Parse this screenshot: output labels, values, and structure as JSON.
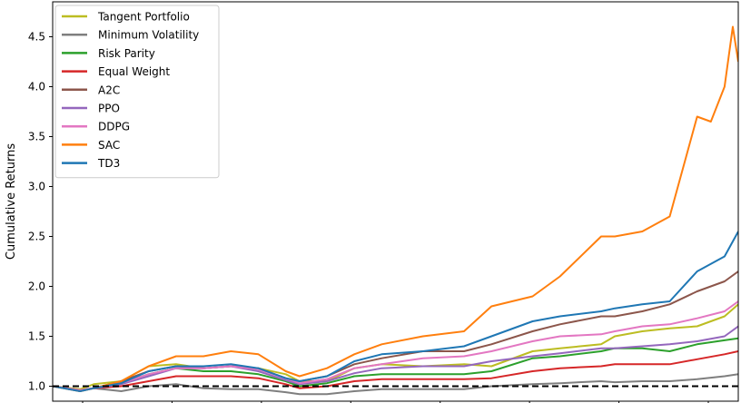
{
  "chart_data": {
    "type": "line",
    "title": "",
    "xlabel": "",
    "ylabel": "Cumulative Returns",
    "ylim": [
      0.85,
      4.85
    ],
    "yticks": [
      1.0,
      1.5,
      2.0,
      2.5,
      3.0,
      3.5,
      4.0,
      4.5
    ],
    "ytick_labels": [
      "1.0",
      "1.5",
      "2.0",
      "2.5",
      "3.0",
      "3.5",
      "4.0",
      "4.5"
    ],
    "xlim": [
      0,
      250
    ],
    "x_tick_count": 8,
    "grid": false,
    "legend_position": "upper left",
    "reference_line": {
      "y": 1.0,
      "style": "dashed",
      "color": "#000000"
    },
    "series": [
      {
        "name": "Tangent Portfolio",
        "color": "#bcbd22",
        "points": [
          [
            0,
            1.0
          ],
          [
            10,
            0.97
          ],
          [
            15,
            1.02
          ],
          [
            25,
            1.05
          ],
          [
            35,
            1.2
          ],
          [
            45,
            1.22
          ],
          [
            55,
            1.18
          ],
          [
            65,
            1.2
          ],
          [
            75,
            1.18
          ],
          [
            85,
            1.12
          ],
          [
            90,
            1.05
          ],
          [
            100,
            1.05
          ],
          [
            110,
            1.18
          ],
          [
            120,
            1.22
          ],
          [
            135,
            1.2
          ],
          [
            150,
            1.22
          ],
          [
            160,
            1.2
          ],
          [
            175,
            1.35
          ],
          [
            185,
            1.38
          ],
          [
            200,
            1.42
          ],
          [
            205,
            1.5
          ],
          [
            215,
            1.55
          ],
          [
            225,
            1.58
          ],
          [
            235,
            1.6
          ],
          [
            245,
            1.7
          ],
          [
            250,
            1.82
          ]
        ]
      },
      {
        "name": "Minimum Volatility",
        "color": "#7f7f7f",
        "points": [
          [
            0,
            1.0
          ],
          [
            10,
            0.95
          ],
          [
            15,
            0.98
          ],
          [
            25,
            0.95
          ],
          [
            35,
            1.0
          ],
          [
            45,
            1.02
          ],
          [
            55,
            0.98
          ],
          [
            65,
            0.97
          ],
          [
            75,
            0.97
          ],
          [
            85,
            0.94
          ],
          [
            90,
            0.92
          ],
          [
            100,
            0.92
          ],
          [
            110,
            0.95
          ],
          [
            120,
            0.97
          ],
          [
            135,
            0.97
          ],
          [
            150,
            0.97
          ],
          [
            160,
            1.0
          ],
          [
            175,
            1.02
          ],
          [
            185,
            1.03
          ],
          [
            200,
            1.05
          ],
          [
            205,
            1.04
          ],
          [
            215,
            1.05
          ],
          [
            225,
            1.05
          ],
          [
            235,
            1.07
          ],
          [
            245,
            1.1
          ],
          [
            250,
            1.12
          ]
        ]
      },
      {
        "name": "Risk Parity",
        "color": "#2ca02c",
        "points": [
          [
            0,
            1.0
          ],
          [
            10,
            0.96
          ],
          [
            15,
            0.98
          ],
          [
            25,
            1.03
          ],
          [
            35,
            1.12
          ],
          [
            45,
            1.18
          ],
          [
            55,
            1.15
          ],
          [
            65,
            1.15
          ],
          [
            75,
            1.12
          ],
          [
            85,
            1.05
          ],
          [
            90,
            1.0
          ],
          [
            100,
            1.03
          ],
          [
            110,
            1.1
          ],
          [
            120,
            1.12
          ],
          [
            135,
            1.12
          ],
          [
            150,
            1.12
          ],
          [
            160,
            1.15
          ],
          [
            175,
            1.28
          ],
          [
            185,
            1.3
          ],
          [
            200,
            1.35
          ],
          [
            205,
            1.38
          ],
          [
            215,
            1.38
          ],
          [
            225,
            1.35
          ],
          [
            235,
            1.42
          ],
          [
            245,
            1.46
          ],
          [
            250,
            1.48
          ]
        ]
      },
      {
        "name": "Equal Weight",
        "color": "#d62728",
        "points": [
          [
            0,
            1.0
          ],
          [
            10,
            0.96
          ],
          [
            15,
            0.98
          ],
          [
            25,
            1.0
          ],
          [
            35,
            1.05
          ],
          [
            45,
            1.1
          ],
          [
            55,
            1.1
          ],
          [
            65,
            1.1
          ],
          [
            75,
            1.08
          ],
          [
            85,
            1.02
          ],
          [
            90,
            0.98
          ],
          [
            100,
            1.0
          ],
          [
            110,
            1.05
          ],
          [
            120,
            1.07
          ],
          [
            135,
            1.07
          ],
          [
            150,
            1.07
          ],
          [
            160,
            1.08
          ],
          [
            175,
            1.15
          ],
          [
            185,
            1.18
          ],
          [
            200,
            1.2
          ],
          [
            205,
            1.22
          ],
          [
            215,
            1.22
          ],
          [
            225,
            1.22
          ],
          [
            235,
            1.27
          ],
          [
            245,
            1.32
          ],
          [
            250,
            1.35
          ]
        ]
      },
      {
        "name": "A2C",
        "color": "#8c564b",
        "points": [
          [
            0,
            1.0
          ],
          [
            10,
            0.96
          ],
          [
            15,
            0.98
          ],
          [
            25,
            1.05
          ],
          [
            35,
            1.15
          ],
          [
            45,
            1.2
          ],
          [
            55,
            1.18
          ],
          [
            65,
            1.2
          ],
          [
            75,
            1.18
          ],
          [
            85,
            1.08
          ],
          [
            90,
            1.05
          ],
          [
            100,
            1.1
          ],
          [
            110,
            1.22
          ],
          [
            120,
            1.28
          ],
          [
            135,
            1.35
          ],
          [
            150,
            1.35
          ],
          [
            160,
            1.42
          ],
          [
            175,
            1.55
          ],
          [
            185,
            1.62
          ],
          [
            200,
            1.7
          ],
          [
            205,
            1.7
          ],
          [
            215,
            1.75
          ],
          [
            225,
            1.82
          ],
          [
            235,
            1.95
          ],
          [
            245,
            2.05
          ],
          [
            250,
            2.15
          ]
        ]
      },
      {
        "name": "PPO",
        "color": "#9467bd",
        "points": [
          [
            0,
            1.0
          ],
          [
            10,
            0.96
          ],
          [
            15,
            0.98
          ],
          [
            25,
            1.02
          ],
          [
            35,
            1.1
          ],
          [
            45,
            1.18
          ],
          [
            55,
            1.18
          ],
          [
            65,
            1.2
          ],
          [
            75,
            1.15
          ],
          [
            85,
            1.06
          ],
          [
            90,
            1.02
          ],
          [
            100,
            1.05
          ],
          [
            110,
            1.13
          ],
          [
            120,
            1.18
          ],
          [
            135,
            1.2
          ],
          [
            150,
            1.2
          ],
          [
            160,
            1.25
          ],
          [
            175,
            1.3
          ],
          [
            185,
            1.33
          ],
          [
            200,
            1.38
          ],
          [
            205,
            1.38
          ],
          [
            215,
            1.4
          ],
          [
            225,
            1.42
          ],
          [
            235,
            1.45
          ],
          [
            245,
            1.5
          ],
          [
            250,
            1.6
          ]
        ]
      },
      {
        "name": "DDPG",
        "color": "#e377c2",
        "points": [
          [
            0,
            1.0
          ],
          [
            10,
            0.96
          ],
          [
            15,
            0.98
          ],
          [
            25,
            1.03
          ],
          [
            35,
            1.12
          ],
          [
            45,
            1.18
          ],
          [
            55,
            1.18
          ],
          [
            65,
            1.2
          ],
          [
            75,
            1.17
          ],
          [
            85,
            1.08
          ],
          [
            90,
            1.03
          ],
          [
            100,
            1.07
          ],
          [
            110,
            1.18
          ],
          [
            120,
            1.22
          ],
          [
            135,
            1.28
          ],
          [
            150,
            1.3
          ],
          [
            160,
            1.35
          ],
          [
            175,
            1.45
          ],
          [
            185,
            1.5
          ],
          [
            200,
            1.52
          ],
          [
            205,
            1.55
          ],
          [
            215,
            1.6
          ],
          [
            225,
            1.62
          ],
          [
            235,
            1.68
          ],
          [
            245,
            1.75
          ],
          [
            250,
            1.85
          ]
        ]
      },
      {
        "name": "SAC",
        "color": "#ff7f0e",
        "points": [
          [
            0,
            1.0
          ],
          [
            10,
            0.95
          ],
          [
            15,
            0.98
          ],
          [
            25,
            1.05
          ],
          [
            35,
            1.2
          ],
          [
            45,
            1.3
          ],
          [
            55,
            1.3
          ],
          [
            65,
            1.35
          ],
          [
            75,
            1.32
          ],
          [
            85,
            1.15
          ],
          [
            90,
            1.1
          ],
          [
            100,
            1.18
          ],
          [
            110,
            1.32
          ],
          [
            120,
            1.42
          ],
          [
            135,
            1.5
          ],
          [
            150,
            1.55
          ],
          [
            160,
            1.8
          ],
          [
            175,
            1.9
          ],
          [
            185,
            2.1
          ],
          [
            200,
            2.5
          ],
          [
            205,
            2.5
          ],
          [
            215,
            2.55
          ],
          [
            225,
            2.7
          ],
          [
            235,
            3.7
          ],
          [
            240,
            3.65
          ],
          [
            245,
            4.0
          ],
          [
            248,
            4.6
          ],
          [
            250,
            4.25
          ]
        ]
      },
      {
        "name": "TD3",
        "color": "#1f77b4",
        "points": [
          [
            0,
            1.0
          ],
          [
            10,
            0.95
          ],
          [
            15,
            0.98
          ],
          [
            25,
            1.03
          ],
          [
            35,
            1.15
          ],
          [
            45,
            1.2
          ],
          [
            55,
            1.2
          ],
          [
            65,
            1.22
          ],
          [
            75,
            1.18
          ],
          [
            85,
            1.08
          ],
          [
            90,
            1.05
          ],
          [
            100,
            1.1
          ],
          [
            110,
            1.25
          ],
          [
            120,
            1.32
          ],
          [
            135,
            1.35
          ],
          [
            150,
            1.4
          ],
          [
            160,
            1.5
          ],
          [
            175,
            1.65
          ],
          [
            185,
            1.7
          ],
          [
            200,
            1.75
          ],
          [
            205,
            1.78
          ],
          [
            215,
            1.82
          ],
          [
            225,
            1.85
          ],
          [
            235,
            2.15
          ],
          [
            245,
            2.3
          ],
          [
            250,
            2.55
          ]
        ]
      }
    ]
  }
}
